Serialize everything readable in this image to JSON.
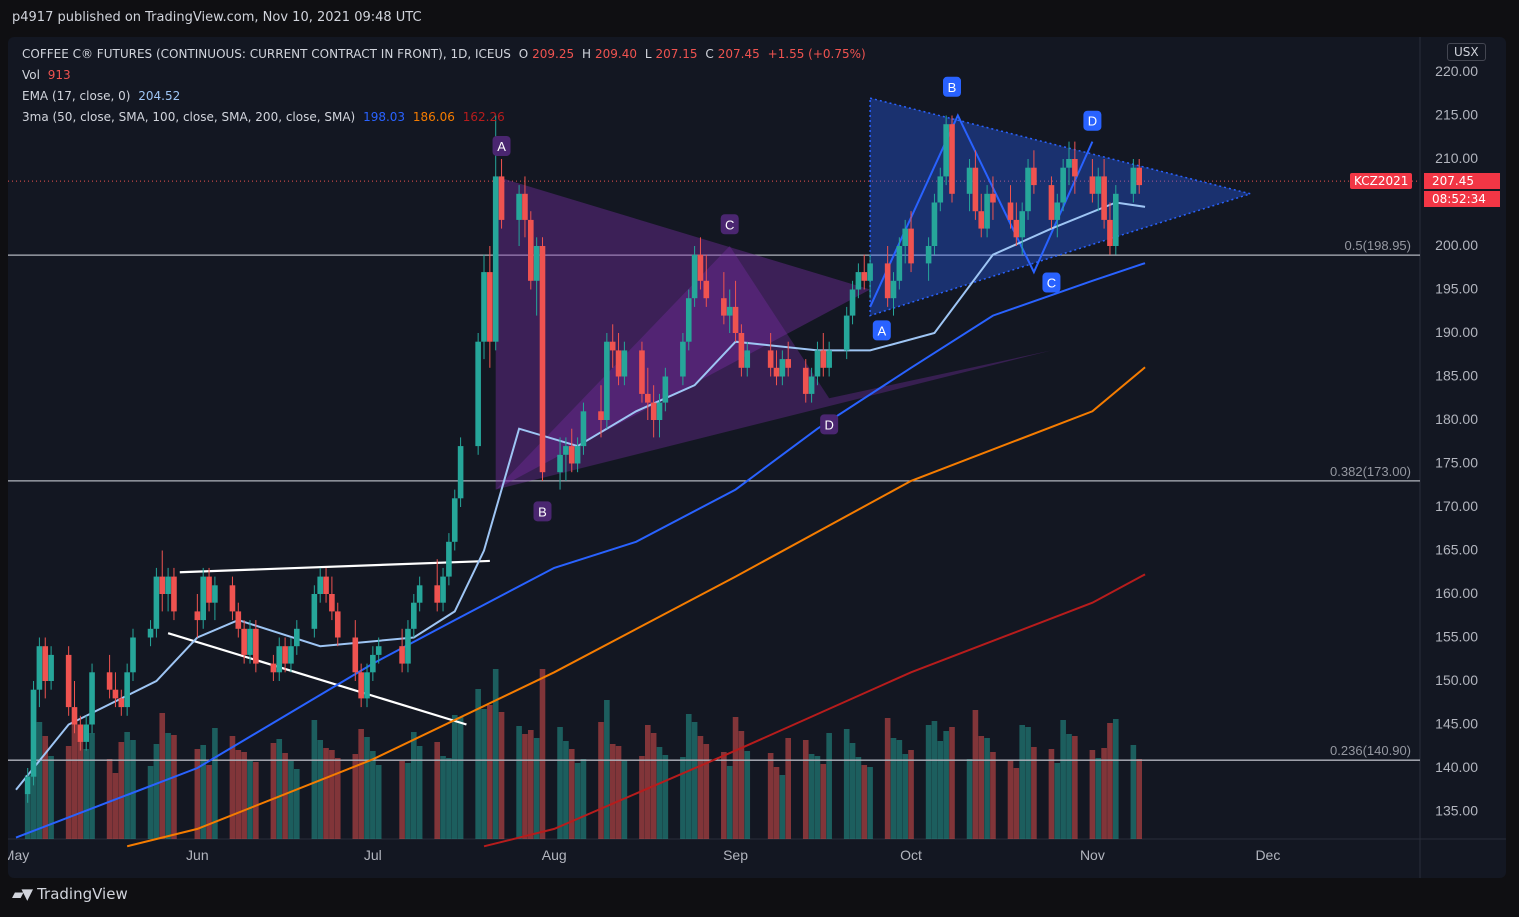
{
  "header": {
    "published": "p4917 published on TradingView.com, Nov 10, 2021 09:48 UTC"
  },
  "legend": {
    "symbol": "COFFEE C® FUTURES (CONTINUOUS: CURRENT CONTRACT IN FRONT), 1D, ICEUS",
    "o_label": "O",
    "o_value": "209.25",
    "h_label": "H",
    "h_value": "209.40",
    "l_label": "L",
    "l_value": "207.15",
    "c_label": "C",
    "c_value": "207.45",
    "change": "+1.55 (+0.75%)",
    "vol_label": "Vol",
    "vol_value": "913",
    "ema_label": "EMA (17, close, 0)",
    "ema_value": "204.52",
    "ma_label": "3ma (50, close, SMA, 100, close, SMA, 200, close, SMA)",
    "ma50_value": "198.03",
    "ma100_value": "186.06",
    "ma200_value": "162.26"
  },
  "currency": "USX",
  "last_price": {
    "symbol": "KCZ2021",
    "price": "207.45",
    "countdown": "08:52:34"
  },
  "footer": {
    "brand": "TradingView"
  },
  "colors": {
    "up": "#26a69a",
    "down": "#ef5350",
    "ema": "#9ec5f4",
    "ma50": "#2962ff",
    "ma100": "#f57c00",
    "ma200": "#b71c1c",
    "purple": "#7b2fa8",
    "blue_pattern": "#2962ff"
  },
  "chart_data": {
    "type": "candlestick",
    "y_axis": {
      "range": [
        131,
        222
      ],
      "ticks": [
        "220.00",
        "215.00",
        "210.00",
        "205.00",
        "200.00",
        "195.00",
        "190.00",
        "185.00",
        "180.00",
        "175.00",
        "170.00",
        "165.00",
        "160.00",
        "155.00",
        "150.00",
        "145.00",
        "140.00",
        "135.00"
      ]
    },
    "x_axis": {
      "labels": [
        "May",
        "Jun",
        "Jul",
        "Aug",
        "Sep",
        "Oct",
        "Nov",
        "Dec"
      ],
      "label_dates": [
        "2021-05-01",
        "2021-06-01",
        "2021-07-01",
        "2021-08-01",
        "2021-09-01",
        "2021-10-01",
        "2021-11-01",
        "2021-12-01"
      ]
    },
    "fib_levels": [
      {
        "label": "0.5(198.95)",
        "value": 198.95
      },
      {
        "label": "0.382(173.00)",
        "value": 173.0
      },
      {
        "label": "0.236(140.90)",
        "value": 140.9
      }
    ],
    "series": [
      {
        "name": "EMA (17, close, 0)",
        "points": [
          [
            "2021-05-01",
            137.5
          ],
          [
            "2021-05-10",
            145
          ],
          [
            "2021-05-25",
            150
          ],
          [
            "2021-06-01",
            155
          ],
          [
            "2021-06-08",
            157
          ],
          [
            "2021-06-22",
            154
          ],
          [
            "2021-07-08",
            155
          ],
          [
            "2021-07-15",
            158
          ],
          [
            "2021-07-20",
            165
          ],
          [
            "2021-07-26",
            179
          ],
          [
            "2021-08-05",
            177
          ],
          [
            "2021-08-15",
            181
          ],
          [
            "2021-08-25",
            184
          ],
          [
            "2021-09-01",
            189
          ],
          [
            "2021-09-15",
            188
          ],
          [
            "2021-09-24",
            188
          ],
          [
            "2021-10-05",
            190
          ],
          [
            "2021-10-15",
            199
          ],
          [
            "2021-10-25",
            202
          ],
          [
            "2021-11-05",
            205
          ],
          [
            "2021-11-10",
            204.5
          ]
        ]
      },
      {
        "name": "SMA 50",
        "points": [
          [
            "2021-05-01",
            132
          ],
          [
            "2021-06-01",
            140
          ],
          [
            "2021-07-01",
            152
          ],
          [
            "2021-07-15",
            157
          ],
          [
            "2021-08-01",
            163
          ],
          [
            "2021-08-15",
            166
          ],
          [
            "2021-09-01",
            172
          ],
          [
            "2021-09-15",
            179
          ],
          [
            "2021-10-01",
            186
          ],
          [
            "2021-10-15",
            192
          ],
          [
            "2021-11-01",
            196
          ],
          [
            "2021-11-10",
            198.03
          ]
        ]
      },
      {
        "name": "SMA 100",
        "points": [
          [
            "2021-05-20",
            131
          ],
          [
            "2021-06-01",
            133
          ],
          [
            "2021-07-01",
            141
          ],
          [
            "2021-08-01",
            151
          ],
          [
            "2021-09-01",
            162
          ],
          [
            "2021-10-01",
            173
          ],
          [
            "2021-11-01",
            181
          ],
          [
            "2021-11-10",
            186.06
          ]
        ]
      },
      {
        "name": "SMA 200",
        "points": [
          [
            "2021-07-20",
            131
          ],
          [
            "2021-08-01",
            133
          ],
          [
            "2021-09-01",
            142
          ],
          [
            "2021-10-01",
            151
          ],
          [
            "2021-11-01",
            159
          ],
          [
            "2021-11-10",
            162.26
          ]
        ]
      }
    ],
    "candles_note": "approximate daily OHLC read from chart",
    "candles": [
      [
        "2021-05-03",
        137,
        140,
        136,
        139
      ],
      [
        "2021-05-04",
        139,
        150,
        138,
        149
      ],
      [
        "2021-05-05",
        149,
        155,
        147,
        154
      ],
      [
        "2021-05-06",
        154,
        155,
        148,
        150
      ],
      [
        "2021-05-07",
        150,
        154,
        149,
        153
      ],
      [
        "2021-05-10",
        153,
        154,
        146,
        147
      ],
      [
        "2021-05-11",
        147,
        150,
        144,
        145
      ],
      [
        "2021-05-12",
        145,
        146,
        142,
        143
      ],
      [
        "2021-05-13",
        143,
        146,
        142,
        145
      ],
      [
        "2021-05-14",
        145,
        152,
        144,
        151
      ],
      [
        "2021-05-17",
        151,
        153,
        148,
        149
      ],
      [
        "2021-05-18",
        149,
        151,
        147,
        148
      ],
      [
        "2021-05-19",
        148,
        149,
        146,
        147
      ],
      [
        "2021-05-20",
        147,
        152,
        146,
        151
      ],
      [
        "2021-05-21",
        151,
        156,
        150,
        155
      ],
      [
        "2021-05-24",
        155,
        157,
        154,
        156
      ],
      [
        "2021-05-25",
        156,
        163,
        155,
        162
      ],
      [
        "2021-05-26",
        162,
        165,
        158,
        160
      ],
      [
        "2021-05-27",
        160,
        163,
        158,
        162
      ],
      [
        "2021-05-28",
        162,
        163,
        157,
        158
      ],
      [
        "2021-06-01",
        158,
        160,
        155,
        157
      ],
      [
        "2021-06-02",
        157,
        163,
        156,
        162
      ],
      [
        "2021-06-03",
        162,
        163,
        158,
        159
      ],
      [
        "2021-06-04",
        159,
        162,
        157,
        161
      ],
      [
        "2021-06-07",
        161,
        162,
        157,
        158
      ],
      [
        "2021-06-08",
        158,
        159,
        155,
        156
      ],
      [
        "2021-06-09",
        156,
        157,
        152,
        153
      ],
      [
        "2021-06-10",
        153,
        157,
        152,
        156
      ],
      [
        "2021-06-11",
        156,
        157,
        151,
        152
      ],
      [
        "2021-06-14",
        152,
        153,
        150,
        151
      ],
      [
        "2021-06-15",
        151,
        155,
        150,
        154
      ],
      [
        "2021-06-16",
        154,
        155,
        151,
        152
      ],
      [
        "2021-06-17",
        152,
        155,
        151,
        154
      ],
      [
        "2021-06-18",
        154,
        157,
        153,
        156
      ],
      [
        "2021-06-21",
        156,
        161,
        155,
        160
      ],
      [
        "2021-06-22",
        160,
        163,
        159,
        162
      ],
      [
        "2021-06-23",
        162,
        163,
        159,
        160
      ],
      [
        "2021-06-24",
        160,
        162,
        157,
        158
      ],
      [
        "2021-06-25",
        158,
        159,
        154,
        155
      ],
      [
        "2021-06-28",
        155,
        157,
        150,
        151
      ],
      [
        "2021-06-29",
        151,
        152,
        147,
        148
      ],
      [
        "2021-06-30",
        148,
        152,
        147,
        151
      ],
      [
        "2021-07-01",
        151,
        154,
        150,
        153
      ],
      [
        "2021-07-02",
        153,
        155,
        152,
        154
      ],
      [
        "2021-07-06",
        154,
        156,
        151,
        152
      ],
      [
        "2021-07-07",
        152,
        157,
        151,
        156
      ],
      [
        "2021-07-08",
        156,
        160,
        155,
        159
      ],
      [
        "2021-07-09",
        159,
        162,
        158,
        161
      ],
      [
        "2021-07-12",
        161,
        164,
        158,
        159
      ],
      [
        "2021-07-13",
        159,
        163,
        158,
        162
      ],
      [
        "2021-07-14",
        162,
        167,
        161,
        166
      ],
      [
        "2021-07-15",
        166,
        172,
        165,
        171
      ],
      [
        "2021-07-16",
        171,
        178,
        170,
        177
      ],
      [
        "2021-07-19",
        177,
        190,
        176,
        189
      ],
      [
        "2021-07-20",
        189,
        199,
        187,
        197
      ],
      [
        "2021-07-21",
        197,
        200,
        186,
        189
      ],
      [
        "2021-07-22",
        189,
        215,
        188,
        208
      ],
      [
        "2021-07-23",
        208,
        210,
        202,
        203
      ],
      [
        "2021-07-26",
        203,
        207,
        200,
        206
      ],
      [
        "2021-07-27",
        206,
        208,
        201,
        203
      ],
      [
        "2021-07-28",
        203,
        204,
        195,
        196
      ],
      [
        "2021-07-29",
        196,
        201,
        192,
        200
      ],
      [
        "2021-07-30",
        200,
        201,
        173,
        174
      ],
      [
        "2021-08-02",
        174,
        178,
        172,
        176
      ],
      [
        "2021-08-03",
        176,
        178,
        173,
        177
      ],
      [
        "2021-08-04",
        177,
        179,
        174,
        175
      ],
      [
        "2021-08-05",
        175,
        178,
        174,
        177
      ],
      [
        "2021-08-06",
        177,
        182,
        176,
        181
      ],
      [
        "2021-08-09",
        181,
        184,
        178,
        180
      ],
      [
        "2021-08-10",
        180,
        190,
        179,
        189
      ],
      [
        "2021-08-11",
        189,
        191,
        186,
        188
      ],
      [
        "2021-08-12",
        188,
        190,
        184,
        185
      ],
      [
        "2021-08-13",
        185,
        189,
        184,
        188
      ],
      [
        "2021-08-16",
        188,
        189,
        182,
        183
      ],
      [
        "2021-08-17",
        183,
        186,
        180,
        182
      ],
      [
        "2021-08-18",
        182,
        184,
        178,
        180
      ],
      [
        "2021-08-19",
        180,
        183,
        178,
        182
      ],
      [
        "2021-08-20",
        182,
        186,
        181,
        185
      ],
      [
        "2021-08-23",
        185,
        190,
        184,
        189
      ],
      [
        "2021-08-24",
        189,
        195,
        188,
        194
      ],
      [
        "2021-08-25",
        194,
        200,
        193,
        199
      ],
      [
        "2021-08-26",
        199,
        201,
        195,
        196
      ],
      [
        "2021-08-27",
        196,
        199,
        193,
        194
      ],
      [
        "2021-08-30",
        194,
        197,
        191,
        192
      ],
      [
        "2021-08-31",
        192,
        195,
        190,
        193
      ],
      [
        "2021-09-01",
        193,
        196,
        189,
        190
      ],
      [
        "2021-09-02",
        190,
        191,
        185,
        186
      ],
      [
        "2021-09-03",
        186,
        189,
        185,
        188
      ],
      [
        "2021-09-07",
        188,
        190,
        185,
        186
      ],
      [
        "2021-09-08",
        186,
        188,
        184,
        185
      ],
      [
        "2021-09-09",
        185,
        188,
        184,
        187
      ],
      [
        "2021-09-10",
        187,
        189,
        185,
        186
      ],
      [
        "2021-09-13",
        186,
        187,
        182,
        183
      ],
      [
        "2021-09-14",
        183,
        186,
        182,
        185
      ],
      [
        "2021-09-15",
        185,
        189,
        184,
        188
      ],
      [
        "2021-09-16",
        188,
        190,
        185,
        186
      ],
      [
        "2021-09-17",
        186,
        189,
        185,
        188
      ],
      [
        "2021-09-20",
        188,
        193,
        187,
        192
      ],
      [
        "2021-09-21",
        192,
        196,
        191,
        195
      ],
      [
        "2021-09-22",
        195,
        198,
        194,
        197
      ],
      [
        "2021-09-23",
        197,
        199,
        195,
        196
      ],
      [
        "2021-09-24",
        196,
        199,
        194,
        198
      ],
      [
        "2021-09-27",
        198,
        200,
        193,
        194
      ],
      [
        "2021-09-28",
        194,
        197,
        192,
        196
      ],
      [
        "2021-09-29",
        196,
        201,
        195,
        200
      ],
      [
        "2021-09-30",
        200,
        203,
        198,
        202
      ],
      [
        "2021-10-01",
        202,
        204,
        197,
        198
      ],
      [
        "2021-10-04",
        198,
        201,
        196,
        200
      ],
      [
        "2021-10-05",
        200,
        206,
        199,
        205
      ],
      [
        "2021-10-06",
        205,
        209,
        204,
        208
      ],
      [
        "2021-10-07",
        208,
        215,
        207,
        214
      ],
      [
        "2021-10-08",
        214,
        215,
        205,
        206
      ],
      [
        "2021-10-11",
        206,
        210,
        204,
        209
      ],
      [
        "2021-10-12",
        209,
        211,
        203,
        204
      ],
      [
        "2021-10-13",
        204,
        206,
        201,
        202
      ],
      [
        "2021-10-14",
        202,
        207,
        201,
        206
      ],
      [
        "2021-10-15",
        206,
        208,
        203,
        205
      ],
      [
        "2021-10-18",
        205,
        207,
        202,
        203
      ],
      [
        "2021-10-19",
        203,
        205,
        200,
        201
      ],
      [
        "2021-10-20",
        201,
        205,
        199,
        204
      ],
      [
        "2021-10-21",
        204,
        210,
        203,
        209
      ],
      [
        "2021-10-22",
        209,
        211,
        206,
        207
      ],
      [
        "2021-10-25",
        207,
        208,
        202,
        203
      ],
      [
        "2021-10-26",
        203,
        206,
        201,
        205
      ],
      [
        "2021-10-27",
        205,
        210,
        204,
        209
      ],
      [
        "2021-10-28",
        209,
        212,
        207,
        210
      ],
      [
        "2021-10-29",
        210,
        212,
        206,
        208
      ],
      [
        "2021-11-01",
        208,
        210,
        205,
        206
      ],
      [
        "2021-11-02",
        206,
        209,
        204,
        208
      ],
      [
        "2021-11-03",
        208,
        210,
        202,
        203
      ],
      [
        "2021-11-04",
        203,
        205,
        199,
        200
      ],
      [
        "2021-11-05",
        200,
        207,
        199,
        206
      ],
      [
        "2021-11-08",
        206,
        210,
        205,
        209
      ],
      [
        "2021-11-09",
        209,
        210,
        206,
        207
      ]
    ]
  }
}
